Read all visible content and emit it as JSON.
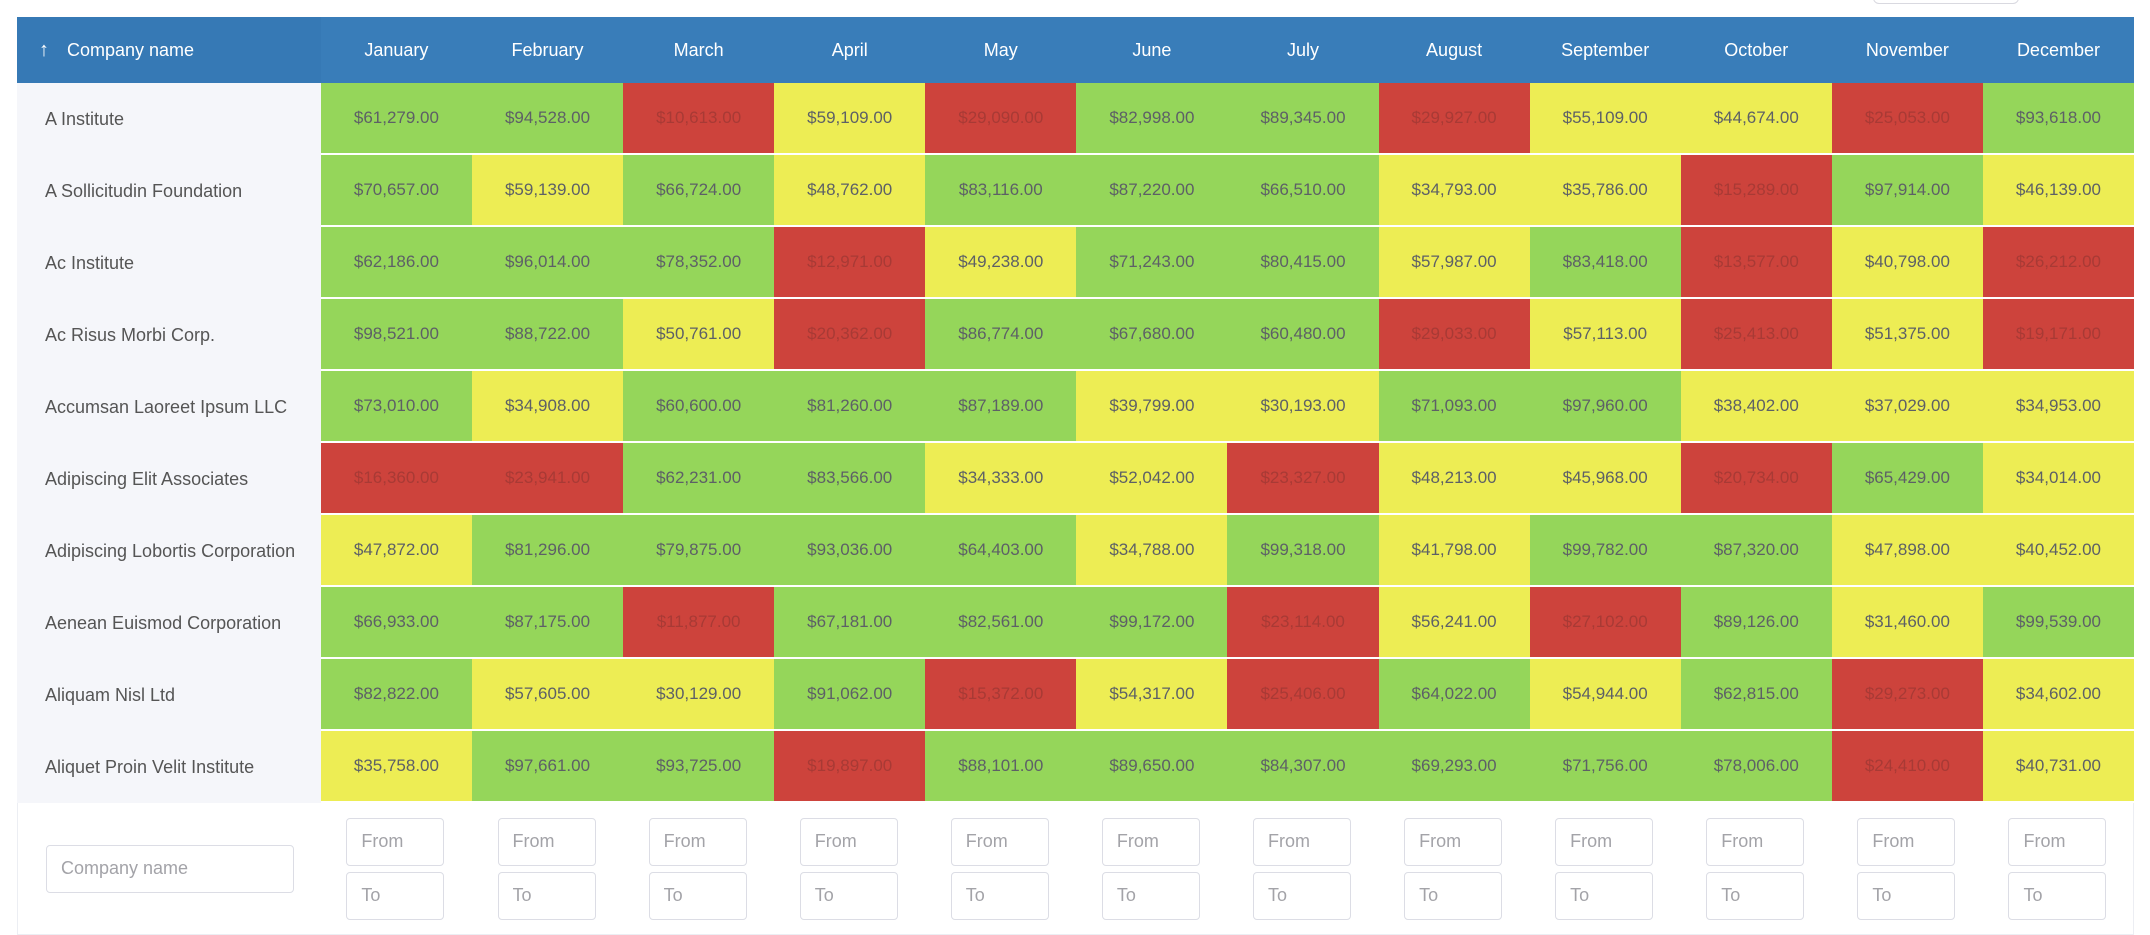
{
  "colors": {
    "header": "#397db9",
    "high": "#95d65a",
    "mid": "#eded54",
    "low": "#cd433c",
    "name_column_bg": "#f5f6fa"
  },
  "header": {
    "sort_icon": "arrow-up-icon",
    "sort_glyph": "↑",
    "company_label": "Company name",
    "months": [
      "January",
      "February",
      "March",
      "April",
      "May",
      "June",
      "July",
      "August",
      "September",
      "October",
      "November",
      "December"
    ]
  },
  "rows": [
    {
      "company": "A Institute",
      "values": [
        "$61,279.00",
        "$94,528.00",
        "$10,613.00",
        "$59,109.00",
        "$29,090.00",
        "$82,998.00",
        "$89,345.00",
        "$29,927.00",
        "$55,109.00",
        "$44,674.00",
        "$25,053.00",
        "$93,618.00"
      ],
      "levels": [
        "g",
        "g",
        "r",
        "y",
        "r",
        "g",
        "g",
        "r",
        "y",
        "y",
        "r",
        "g"
      ]
    },
    {
      "company": "A Sollicitudin Foundation",
      "values": [
        "$70,657.00",
        "$59,139.00",
        "$66,724.00",
        "$48,762.00",
        "$83,116.00",
        "$87,220.00",
        "$66,510.00",
        "$34,793.00",
        "$35,786.00",
        "$15,289.00",
        "$97,914.00",
        "$46,139.00"
      ],
      "levels": [
        "g",
        "y",
        "g",
        "y",
        "g",
        "g",
        "g",
        "y",
        "y",
        "r",
        "g",
        "y"
      ]
    },
    {
      "company": "Ac Institute",
      "values": [
        "$62,186.00",
        "$96,014.00",
        "$78,352.00",
        "$12,971.00",
        "$49,238.00",
        "$71,243.00",
        "$80,415.00",
        "$57,987.00",
        "$83,418.00",
        "$13,577.00",
        "$40,798.00",
        "$26,212.00"
      ],
      "levels": [
        "g",
        "g",
        "g",
        "r",
        "y",
        "g",
        "g",
        "y",
        "g",
        "r",
        "y",
        "r"
      ]
    },
    {
      "company": "Ac Risus Morbi Corp.",
      "values": [
        "$98,521.00",
        "$88,722.00",
        "$50,761.00",
        "$20,362.00",
        "$86,774.00",
        "$67,680.00",
        "$60,480.00",
        "$29,033.00",
        "$57,113.00",
        "$25,413.00",
        "$51,375.00",
        "$19,171.00"
      ],
      "levels": [
        "g",
        "g",
        "y",
        "r",
        "g",
        "g",
        "g",
        "r",
        "y",
        "r",
        "y",
        "r"
      ]
    },
    {
      "company": "Accumsan Laoreet Ipsum LLC",
      "values": [
        "$73,010.00",
        "$34,908.00",
        "$60,600.00",
        "$81,260.00",
        "$87,189.00",
        "$39,799.00",
        "$30,193.00",
        "$71,093.00",
        "$97,960.00",
        "$38,402.00",
        "$37,029.00",
        "$34,953.00"
      ],
      "levels": [
        "g",
        "y",
        "g",
        "g",
        "g",
        "y",
        "y",
        "g",
        "g",
        "y",
        "y",
        "y"
      ]
    },
    {
      "company": "Adipiscing Elit Associates",
      "values": [
        "$16,360.00",
        "$23,941.00",
        "$62,231.00",
        "$83,566.00",
        "$34,333.00",
        "$52,042.00",
        "$23,327.00",
        "$48,213.00",
        "$45,968.00",
        "$20,734.00",
        "$65,429.00",
        "$34,014.00"
      ],
      "levels": [
        "r",
        "r",
        "g",
        "g",
        "y",
        "y",
        "r",
        "y",
        "y",
        "r",
        "g",
        "y"
      ]
    },
    {
      "company": "Adipiscing Lobortis Corporation",
      "values": [
        "$47,872.00",
        "$81,296.00",
        "$79,875.00",
        "$93,036.00",
        "$64,403.00",
        "$34,788.00",
        "$99,318.00",
        "$41,798.00",
        "$99,782.00",
        "$87,320.00",
        "$47,898.00",
        "$40,452.00"
      ],
      "levels": [
        "y",
        "g",
        "g",
        "g",
        "g",
        "y",
        "g",
        "y",
        "g",
        "g",
        "y",
        "y"
      ]
    },
    {
      "company": "Aenean Euismod Corporation",
      "values": [
        "$66,933.00",
        "$87,175.00",
        "$11,877.00",
        "$67,181.00",
        "$82,561.00",
        "$99,172.00",
        "$23,114.00",
        "$56,241.00",
        "$27,102.00",
        "$89,126.00",
        "$31,460.00",
        "$99,539.00"
      ],
      "levels": [
        "g",
        "g",
        "r",
        "g",
        "g",
        "g",
        "r",
        "y",
        "r",
        "g",
        "y",
        "g"
      ]
    },
    {
      "company": "Aliquam Nisl Ltd",
      "values": [
        "$82,822.00",
        "$57,605.00",
        "$30,129.00",
        "$91,062.00",
        "$15,372.00",
        "$54,317.00",
        "$25,406.00",
        "$64,022.00",
        "$54,944.00",
        "$62,815.00",
        "$29,273.00",
        "$34,602.00"
      ],
      "levels": [
        "g",
        "y",
        "y",
        "g",
        "r",
        "y",
        "r",
        "g",
        "y",
        "g",
        "r",
        "y"
      ]
    },
    {
      "company": "Aliquet Proin Velit Institute",
      "values": [
        "$35,758.00",
        "$97,661.00",
        "$93,725.00",
        "$19,897.00",
        "$88,101.00",
        "$89,650.00",
        "$84,307.00",
        "$69,293.00",
        "$71,756.00",
        "$78,006.00",
        "$24,410.00",
        "$40,731.00"
      ],
      "levels": [
        "y",
        "g",
        "g",
        "r",
        "g",
        "g",
        "g",
        "g",
        "g",
        "g",
        "r",
        "y"
      ]
    }
  ],
  "filters": {
    "company_placeholder": "Company name",
    "from_placeholder": "From",
    "to_placeholder": "To"
  }
}
